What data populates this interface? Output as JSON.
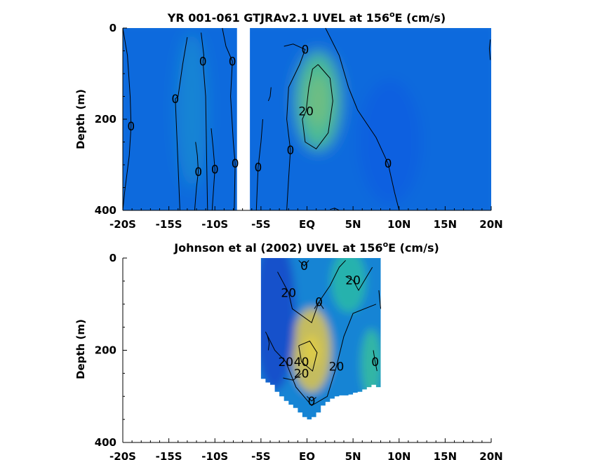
{
  "chart_data": [
    {
      "type": "heatmap",
      "title_main": "YR 001-061 GTJRAv2.1 UVEL at 156",
      "title_sup": "o",
      "title_tail": "E (cm/s)",
      "xlabel": "",
      "ylabel": "Depth (m)",
      "xlim": [
        -20,
        20
      ],
      "ylim": [
        0,
        400
      ],
      "y_reversed": true,
      "x_ticks": [
        -20,
        -15,
        -10,
        -5,
        0,
        5,
        10,
        15,
        20
      ],
      "x_tick_labels": [
        "-20S",
        "-15S",
        "-10S",
        "-5S",
        "EQ",
        "5N",
        "10N",
        "15N",
        "20N"
      ],
      "y_ticks": [
        0,
        200,
        400
      ],
      "y_tick_labels": [
        "0",
        "200",
        "400"
      ],
      "data_gap_lon": [
        -7.6,
        -6.2
      ],
      "color_range": [
        -20,
        60
      ],
      "features": [
        {
          "kind": "eastward_core",
          "lon": 1.2,
          "depth": 160,
          "peak": 32
        },
        {
          "kind": "weak_eastward_band",
          "lon": -12.5,
          "depth": 180,
          "peak": 8
        },
        {
          "kind": "weak_westward",
          "lon": 9,
          "depth": 250,
          "peak": -3
        }
      ],
      "contour_levels": [
        0,
        20
      ],
      "contour_labels": [
        {
          "text": "0",
          "lon": -19.1,
          "depth": 215
        },
        {
          "text": "0",
          "lon": -14.3,
          "depth": 155
        },
        {
          "text": "0",
          "lon": -11.3,
          "depth": 73
        },
        {
          "text": "0",
          "lon": -8.1,
          "depth": 73
        },
        {
          "text": "0",
          "lon": -11.8,
          "depth": 315
        },
        {
          "text": "0",
          "lon": -10.0,
          "depth": 310
        },
        {
          "text": "0",
          "lon": -7.8,
          "depth": 297
        },
        {
          "text": "0",
          "lon": -5.3,
          "depth": 305
        },
        {
          "text": "0",
          "lon": -0.2,
          "depth": 47
        },
        {
          "text": "20",
          "lon": -0.1,
          "depth": 182
        },
        {
          "text": "0",
          "lon": -1.8,
          "depth": 268
        },
        {
          "text": "0",
          "lon": 8.8,
          "depth": 297
        }
      ]
    },
    {
      "type": "heatmap",
      "title_main": "Johnson et al (2002) UVEL at 156",
      "title_sup": "o",
      "title_tail": "E (cm/s)",
      "xlabel": "",
      "ylabel": "Depth (m)",
      "xlim": [
        -20,
        20
      ],
      "ylim": [
        0,
        400
      ],
      "y_reversed": true,
      "x_ticks": [
        -20,
        -15,
        -10,
        -5,
        0,
        5,
        10,
        15,
        20
      ],
      "x_tick_labels": [
        "-20S",
        "-15S",
        "-10S",
        "-5S",
        "EQ",
        "5N",
        "10N",
        "15N",
        "20N"
      ],
      "y_ticks": [
        0,
        200,
        400
      ],
      "y_tick_labels": [
        "0",
        "200",
        "400"
      ],
      "data_lon_range": [
        -5,
        8
      ],
      "color_range": [
        -20,
        60
      ],
      "bottom_profile": [
        [
          -5.0,
          262
        ],
        [
          -4.5,
          262
        ],
        [
          -4.0,
          270
        ],
        [
          -3.5,
          275
        ],
        [
          -3.0,
          290
        ],
        [
          -2.5,
          300
        ],
        [
          -2.0,
          310
        ],
        [
          -1.5,
          318
        ],
        [
          -1.0,
          325
        ],
        [
          -0.5,
          335
        ],
        [
          0.0,
          345
        ],
        [
          0.5,
          350
        ],
        [
          1.0,
          345
        ],
        [
          1.5,
          335
        ],
        [
          2.0,
          320
        ],
        [
          2.5,
          312
        ],
        [
          3.0,
          305
        ],
        [
          3.5,
          300
        ],
        [
          4.0,
          298
        ],
        [
          4.5,
          298
        ],
        [
          5.0,
          296
        ],
        [
          5.5,
          292
        ],
        [
          6.0,
          290
        ],
        [
          6.5,
          285
        ],
        [
          7.0,
          280
        ],
        [
          7.5,
          275
        ],
        [
          8.0,
          280
        ]
      ],
      "features": [
        {
          "kind": "eastward_core",
          "lon": 0.5,
          "depth": 200,
          "peak": 48
        },
        {
          "kind": "eastward_shallow_north",
          "lon": 4.5,
          "depth": 50,
          "peak": 26
        },
        {
          "kind": "westward_south",
          "lon": -3.5,
          "depth": 120,
          "peak": -8
        },
        {
          "kind": "eastward_deep_north",
          "lon": 7.0,
          "depth": 230,
          "peak": 28
        }
      ],
      "contour_levels": [
        0,
        20,
        40
      ],
      "contour_labels": [
        {
          "text": "0",
          "lon": -0.3,
          "depth": 17
        },
        {
          "text": "20",
          "lon": -2.0,
          "depth": 75
        },
        {
          "text": "0",
          "lon": 1.3,
          "depth": 95
        },
        {
          "text": "20",
          "lon": 5.0,
          "depth": 48
        },
        {
          "text": "20",
          "lon": -2.3,
          "depth": 225
        },
        {
          "text": "40",
          "lon": -0.6,
          "depth": 225
        },
        {
          "text": "20",
          "lon": -0.6,
          "depth": 250
        },
        {
          "text": "20",
          "lon": 3.2,
          "depth": 235
        },
        {
          "text": "0",
          "lon": 7.4,
          "depth": 225
        },
        {
          "text": "0",
          "lon": 0.5,
          "depth": 310
        }
      ]
    }
  ]
}
